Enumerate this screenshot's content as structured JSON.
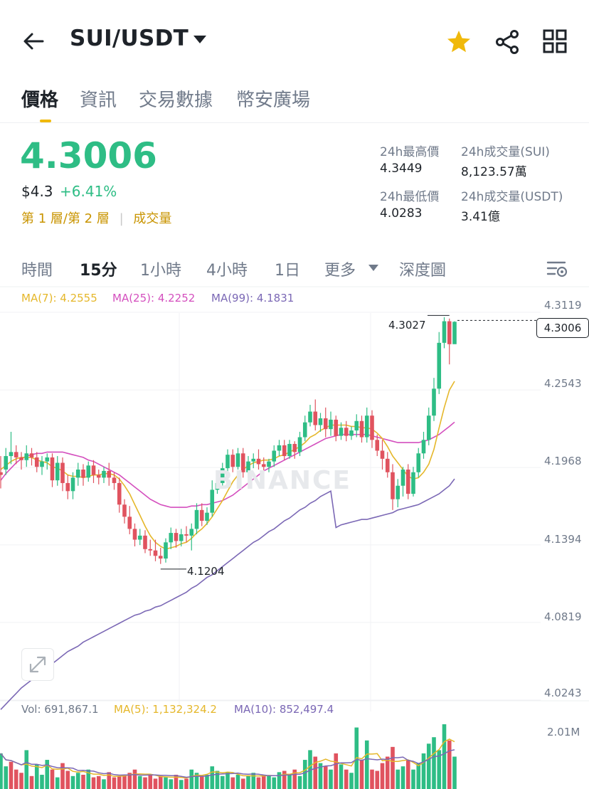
{
  "header": {
    "pair": "SUI/USDT",
    "icons": [
      "back-arrow-icon",
      "dropdown-caret-icon",
      "star-icon",
      "share-icon",
      "grid-menu-icon"
    ],
    "star_color": "#f0b90b"
  },
  "tabs": [
    {
      "label": "價格",
      "active": true
    },
    {
      "label": "資訊",
      "active": false
    },
    {
      "label": "交易數據",
      "active": false
    },
    {
      "label": "幣安廣場",
      "active": false
    }
  ],
  "price": {
    "last": "4.3006",
    "usd": "$4.3",
    "change": "+6.41%",
    "layer_tag": "第 1 層/第 2 層",
    "volume_tag": "成交量",
    "up_color": "#2ebd85",
    "down_color": "#e0535f"
  },
  "stats": {
    "high_label": "24h最高價",
    "high_value": "4.3449",
    "vol_sui_label": "24h成交量(SUI)",
    "vol_sui_value": "8,123.57萬",
    "low_label": "24h最低價",
    "low_value": "4.0283",
    "vol_usdt_label": "24h成交量(USDT)",
    "vol_usdt_value": "3.41億"
  },
  "timeframes": [
    {
      "label": "時間",
      "active": false
    },
    {
      "label": "15分",
      "active": true
    },
    {
      "label": "1小時",
      "active": false
    },
    {
      "label": "4小時",
      "active": false
    },
    {
      "label": "1日",
      "active": false
    },
    {
      "label": "更多",
      "active": false
    },
    {
      "label": "深度圖",
      "active": false
    }
  ],
  "indicators": {
    "ma7": "MA(7): 4.2555",
    "ma25": "MA(25): 4.2252",
    "ma99": "MA(99): 4.1831",
    "ma7_color": "#e5b72a",
    "ma25_color": "#d44fbe",
    "ma99_color": "#7b68b5"
  },
  "volume_indicators": {
    "vol": "Vol: 691,867.1",
    "ma5": "MA(5): 1,132,324.2",
    "ma10": "MA(10): 852,497.4",
    "axis_label": "2.01M"
  },
  "chart_axis": {
    "ticks": [
      "4.3119",
      "4.2543",
      "4.1968",
      "4.1394",
      "4.0819",
      "4.0243"
    ],
    "current_price": "4.3006",
    "high_marker": "4.3027",
    "low_marker": "4.1204",
    "watermark": "BINANCE"
  },
  "chart_data": {
    "type": "candlestick",
    "interval": "15分",
    "ylim": [
      4.0243,
      4.3119
    ],
    "candles": [
      {
        "o": 4.188,
        "h": 4.2,
        "c": 4.186,
        "l": 4.176
      },
      {
        "o": 4.19,
        "h": 4.206,
        "c": 4.2,
        "l": 4.186
      },
      {
        "o": 4.2,
        "h": 4.218,
        "c": 4.203,
        "l": 4.194
      },
      {
        "o": 4.203,
        "h": 4.208,
        "c": 4.199,
        "l": 4.194
      },
      {
        "o": 4.199,
        "h": 4.203,
        "c": 4.197,
        "l": 4.19
      },
      {
        "o": 4.197,
        "h": 4.208,
        "c": 4.202,
        "l": 4.192
      },
      {
        "o": 4.202,
        "h": 4.206,
        "c": 4.199,
        "l": 4.193
      },
      {
        "o": 4.199,
        "h": 4.203,
        "c": 4.192,
        "l": 4.188
      },
      {
        "o": 4.192,
        "h": 4.2,
        "c": 4.196,
        "l": 4.186
      },
      {
        "o": 4.196,
        "h": 4.202,
        "c": 4.199,
        "l": 4.19
      },
      {
        "o": 4.199,
        "h": 4.202,
        "c": 4.182,
        "l": 4.177
      },
      {
        "o": 4.182,
        "h": 4.2,
        "c": 4.195,
        "l": 4.178
      },
      {
        "o": 4.195,
        "h": 4.199,
        "c": 4.18,
        "l": 4.174
      },
      {
        "o": 4.18,
        "h": 4.186,
        "c": 4.174,
        "l": 4.168
      },
      {
        "o": 4.174,
        "h": 4.188,
        "c": 4.184,
        "l": 4.168
      },
      {
        "o": 4.184,
        "h": 4.195,
        "c": 4.19,
        "l": 4.178
      },
      {
        "o": 4.19,
        "h": 4.194,
        "c": 4.184,
        "l": 4.178
      },
      {
        "o": 4.184,
        "h": 4.196,
        "c": 4.193,
        "l": 4.181
      },
      {
        "o": 4.193,
        "h": 4.197,
        "c": 4.186,
        "l": 4.18
      },
      {
        "o": 4.186,
        "h": 4.19,
        "c": 4.184,
        "l": 4.179
      },
      {
        "o": 4.184,
        "h": 4.192,
        "c": 4.189,
        "l": 4.18
      },
      {
        "o": 4.189,
        "h": 4.195,
        "c": 4.184,
        "l": 4.178
      },
      {
        "o": 4.184,
        "h": 4.188,
        "c": 4.18,
        "l": 4.175
      },
      {
        "o": 4.18,
        "h": 4.184,
        "c": 4.164,
        "l": 4.158
      },
      {
        "o": 4.164,
        "h": 4.168,
        "c": 4.155,
        "l": 4.15
      },
      {
        "o": 4.155,
        "h": 4.163,
        "c": 4.146,
        "l": 4.142
      },
      {
        "o": 4.146,
        "h": 4.15,
        "c": 4.138,
        "l": 4.133
      },
      {
        "o": 4.138,
        "h": 4.146,
        "c": 4.141,
        "l": 4.134
      },
      {
        "o": 4.141,
        "h": 4.145,
        "c": 4.131,
        "l": 4.128
      },
      {
        "o": 4.131,
        "h": 4.138,
        "c": 4.13,
        "l": 4.126
      },
      {
        "o": 4.13,
        "h": 4.138,
        "c": 4.126,
        "l": 4.122
      },
      {
        "o": 4.126,
        "h": 4.132,
        "c": 4.124,
        "l": 4.12
      },
      {
        "o": 4.124,
        "h": 4.139,
        "c": 4.136,
        "l": 4.121
      },
      {
        "o": 4.136,
        "h": 4.147,
        "c": 4.143,
        "l": 4.131
      },
      {
        "o": 4.143,
        "h": 4.146,
        "c": 4.137,
        "l": 4.132
      },
      {
        "o": 4.137,
        "h": 4.146,
        "c": 4.142,
        "l": 4.133
      },
      {
        "o": 4.142,
        "h": 4.148,
        "c": 4.141,
        "l": 4.136
      },
      {
        "o": 4.141,
        "h": 4.15,
        "c": 4.146,
        "l": 4.13
      },
      {
        "o": 4.146,
        "h": 4.165,
        "c": 4.16,
        "l": 4.142
      },
      {
        "o": 4.16,
        "h": 4.165,
        "c": 4.152,
        "l": 4.148
      },
      {
        "o": 4.152,
        "h": 4.162,
        "c": 4.158,
        "l": 4.149
      },
      {
        "o": 4.158,
        "h": 4.182,
        "c": 4.175,
        "l": 4.155
      },
      {
        "o": 4.175,
        "h": 4.186,
        "c": 4.18,
        "l": 4.172
      },
      {
        "o": 4.18,
        "h": 4.195,
        "c": 4.191,
        "l": 4.178
      },
      {
        "o": 4.191,
        "h": 4.205,
        "c": 4.201,
        "l": 4.186
      },
      {
        "o": 4.201,
        "h": 4.205,
        "c": 4.192,
        "l": 4.188
      },
      {
        "o": 4.192,
        "h": 4.206,
        "c": 4.202,
        "l": 4.19
      },
      {
        "o": 4.202,
        "h": 4.206,
        "c": 4.188,
        "l": 4.184
      },
      {
        "o": 4.188,
        "h": 4.2,
        "c": 4.196,
        "l": 4.184
      },
      {
        "o": 4.196,
        "h": 4.202,
        "c": 4.198,
        "l": 4.191
      },
      {
        "o": 4.198,
        "h": 4.205,
        "c": 4.194,
        "l": 4.19
      },
      {
        "o": 4.194,
        "h": 4.199,
        "c": 4.192,
        "l": 4.186
      },
      {
        "o": 4.192,
        "h": 4.198,
        "c": 4.196,
        "l": 4.188
      },
      {
        "o": 4.196,
        "h": 4.208,
        "c": 4.204,
        "l": 4.192
      },
      {
        "o": 4.204,
        "h": 4.212,
        "c": 4.208,
        "l": 4.2
      },
      {
        "o": 4.208,
        "h": 4.212,
        "c": 4.2,
        "l": 4.197
      },
      {
        "o": 4.2,
        "h": 4.212,
        "c": 4.209,
        "l": 4.198
      },
      {
        "o": 4.209,
        "h": 4.211,
        "c": 4.203,
        "l": 4.198
      },
      {
        "o": 4.203,
        "h": 4.218,
        "c": 4.214,
        "l": 4.2
      },
      {
        "o": 4.214,
        "h": 4.23,
        "c": 4.225,
        "l": 4.211
      },
      {
        "o": 4.225,
        "h": 4.238,
        "c": 4.233,
        "l": 4.222
      },
      {
        "o": 4.233,
        "h": 4.242,
        "c": 4.223,
        "l": 4.219
      },
      {
        "o": 4.223,
        "h": 4.232,
        "c": 4.228,
        "l": 4.218
      },
      {
        "o": 4.228,
        "h": 4.236,
        "c": 4.22,
        "l": 4.214
      },
      {
        "o": 4.22,
        "h": 4.233,
        "c": 4.227,
        "l": 4.215
      },
      {
        "o": 4.227,
        "h": 4.23,
        "c": 4.215,
        "l": 4.211
      },
      {
        "o": 4.215,
        "h": 4.225,
        "c": 4.221,
        "l": 4.212
      },
      {
        "o": 4.221,
        "h": 4.226,
        "c": 4.215,
        "l": 4.211
      },
      {
        "o": 4.215,
        "h": 4.222,
        "c": 4.219,
        "l": 4.212
      },
      {
        "o": 4.219,
        "h": 4.231,
        "c": 4.226,
        "l": 4.214
      },
      {
        "o": 4.226,
        "h": 4.23,
        "c": 4.214,
        "l": 4.21
      },
      {
        "o": 4.214,
        "h": 4.236,
        "c": 4.23,
        "l": 4.21
      },
      {
        "o": 4.23,
        "h": 4.234,
        "c": 4.212,
        "l": 4.206
      },
      {
        "o": 4.212,
        "h": 4.216,
        "c": 4.204,
        "l": 4.2
      },
      {
        "o": 4.204,
        "h": 4.212,
        "c": 4.198,
        "l": 4.19
      },
      {
        "o": 4.198,
        "h": 4.203,
        "c": 4.188,
        "l": 4.184
      },
      {
        "o": 4.188,
        "h": 4.194,
        "c": 4.168,
        "l": 4.16
      },
      {
        "o": 4.168,
        "h": 4.183,
        "c": 4.178,
        "l": 4.162
      },
      {
        "o": 4.178,
        "h": 4.192,
        "c": 4.19,
        "l": 4.17
      },
      {
        "o": 4.19,
        "h": 4.194,
        "c": 4.172,
        "l": 4.168
      },
      {
        "o": 4.172,
        "h": 4.192,
        "c": 4.188,
        "l": 4.17
      },
      {
        "o": 4.188,
        "h": 4.206,
        "c": 4.202,
        "l": 4.184
      },
      {
        "o": 4.202,
        "h": 4.218,
        "c": 4.212,
        "l": 4.198
      },
      {
        "o": 4.212,
        "h": 4.236,
        "c": 4.23,
        "l": 4.208
      },
      {
        "o": 4.23,
        "h": 4.258,
        "c": 4.25,
        "l": 4.226
      },
      {
        "o": 4.25,
        "h": 4.292,
        "c": 4.284,
        "l": 4.246
      },
      {
        "o": 4.284,
        "h": 4.303,
        "c": 4.3,
        "l": 4.28
      },
      {
        "o": 4.3,
        "h": 4.302,
        "c": 4.283,
        "l": 4.268
      },
      {
        "o": 4.283,
        "h": 4.3,
        "c": 4.2996,
        "l": 4.285
      }
    ],
    "ma7": [
      4.19,
      4.193,
      4.196,
      4.198,
      4.199,
      4.199,
      4.199,
      4.197,
      4.196,
      4.195,
      4.192,
      4.191,
      4.189,
      4.186,
      4.185,
      4.185,
      4.184,
      4.185,
      4.186,
      4.186,
      4.187,
      4.187,
      4.186,
      4.183,
      4.178,
      4.172,
      4.164,
      4.156,
      4.148,
      4.141,
      4.136,
      4.133,
      4.131,
      4.132,
      4.133,
      4.135,
      4.136,
      4.139,
      4.143,
      4.146,
      4.15,
      4.155,
      4.161,
      4.167,
      4.174,
      4.181,
      4.186,
      4.19,
      4.193,
      4.195,
      4.196,
      4.197,
      4.197,
      4.198,
      4.2,
      4.201,
      4.203,
      4.205,
      4.207,
      4.21,
      4.214,
      4.216,
      4.219,
      4.221,
      4.223,
      4.223,
      4.223,
      4.223,
      4.222,
      4.222,
      4.221,
      4.221,
      4.22,
      4.217,
      4.213,
      4.207,
      4.2,
      4.195,
      4.19,
      4.185,
      4.183,
      4.184,
      4.188,
      4.194,
      4.205,
      4.221,
      4.236,
      4.249,
      4.2555
    ],
    "ma25": [
      4.182,
      4.187,
      4.191,
      4.195,
      4.198,
      4.2,
      4.201,
      4.202,
      4.202,
      4.203,
      4.203,
      4.203,
      4.203,
      4.202,
      4.201,
      4.2,
      4.199,
      4.197,
      4.196,
      4.194,
      4.192,
      4.19,
      4.188,
      4.186,
      4.183,
      4.18,
      4.177,
      4.174,
      4.171,
      4.168,
      4.166,
      4.164,
      4.163,
      4.162,
      4.162,
      4.162,
      4.162,
      4.163,
      4.163,
      4.164,
      4.164,
      4.165,
      4.166,
      4.167,
      4.169,
      4.171,
      4.174,
      4.177,
      4.18,
      4.183,
      4.186,
      4.189,
      4.191,
      4.193,
      4.195,
      4.197,
      4.199,
      4.201,
      4.203,
      4.205,
      4.207,
      4.209,
      4.211,
      4.213,
      4.214,
      4.215,
      4.216,
      4.216,
      4.216,
      4.216,
      4.216,
      4.216,
      4.215,
      4.214,
      4.213,
      4.212,
      4.211,
      4.21,
      4.21,
      4.21,
      4.21,
      4.21,
      4.211,
      4.212,
      4.214,
      4.216,
      4.219,
      4.222,
      4.2252
    ],
    "ma99": [
      4.012,
      4.016,
      4.02,
      4.024,
      4.028,
      4.031,
      4.034,
      4.037,
      4.04,
      4.043,
      4.046,
      4.049,
      4.052,
      4.055,
      4.057,
      4.059,
      4.062,
      4.064,
      4.066,
      4.068,
      4.07,
      4.072,
      4.074,
      4.076,
      4.078,
      4.08,
      4.082,
      4.083,
      4.085,
      4.086,
      4.088,
      4.089,
      4.091,
      4.093,
      4.095,
      4.097,
      4.099,
      4.102,
      4.104,
      4.107,
      4.11,
      4.112,
      4.115,
      4.118,
      4.121,
      4.124,
      4.127,
      4.13,
      4.133,
      4.136,
      4.138,
      4.141,
      4.144,
      4.146,
      4.149,
      4.152,
      4.154,
      4.157,
      4.16,
      4.162,
      4.165,
      4.167,
      4.17,
      4.172,
      4.174,
      4.147,
      4.149,
      4.15,
      4.151,
      4.152,
      4.153,
      4.153,
      4.154,
      4.155,
      4.156,
      4.157,
      4.158,
      4.16,
      4.161,
      4.162,
      4.163,
      4.164,
      4.166,
      4.168,
      4.17,
      4.172,
      4.175,
      4.178,
      4.1831
    ],
    "volume": [
      0.55,
      0.35,
      0.42,
      0.3,
      0.25,
      0.6,
      0.2,
      0.38,
      0.22,
      0.45,
      0.3,
      0.18,
      0.4,
      0.28,
      0.2,
      0.25,
      0.22,
      0.3,
      0.18,
      0.2,
      0.15,
      0.26,
      0.18,
      0.2,
      0.22,
      0.25,
      0.3,
      0.2,
      0.18,
      0.22,
      0.16,
      0.2,
      0.18,
      0.15,
      0.22,
      0.14,
      0.16,
      0.3,
      0.25,
      0.2,
      0.22,
      0.35,
      0.28,
      0.2,
      0.26,
      0.18,
      0.22,
      0.16,
      0.2,
      0.25,
      0.18,
      0.22,
      0.2,
      0.18,
      0.26,
      0.28,
      0.22,
      0.3,
      0.2,
      0.45,
      0.6,
      0.5,
      0.4,
      0.35,
      0.3,
      0.55,
      0.38,
      0.3,
      0.25,
      0.95,
      0.45,
      0.75,
      0.3,
      0.28,
      0.4,
      0.5,
      0.65,
      0.3,
      0.35,
      0.45,
      0.3,
      0.4,
      0.55,
      0.7,
      0.8,
      0.6,
      1.0,
      0.75,
      0.5
    ],
    "volume_up": [
      true,
      true,
      false,
      false,
      false,
      true,
      false,
      true,
      true,
      true,
      false,
      true,
      false,
      false,
      true,
      true,
      false,
      true,
      false,
      false,
      true,
      false,
      false,
      false,
      false,
      false,
      false,
      true,
      false,
      false,
      false,
      false,
      true,
      true,
      false,
      true,
      false,
      true,
      true,
      false,
      true,
      true,
      true,
      true,
      true,
      false,
      true,
      false,
      true,
      true,
      false,
      false,
      true,
      true,
      true,
      false,
      true,
      false,
      true,
      true,
      true,
      false,
      true,
      false,
      true,
      false,
      true,
      false,
      true,
      true,
      false,
      true,
      false,
      false,
      false,
      false,
      false,
      true,
      true,
      false,
      true,
      true,
      true,
      true,
      true,
      true,
      true,
      false,
      true
    ]
  }
}
